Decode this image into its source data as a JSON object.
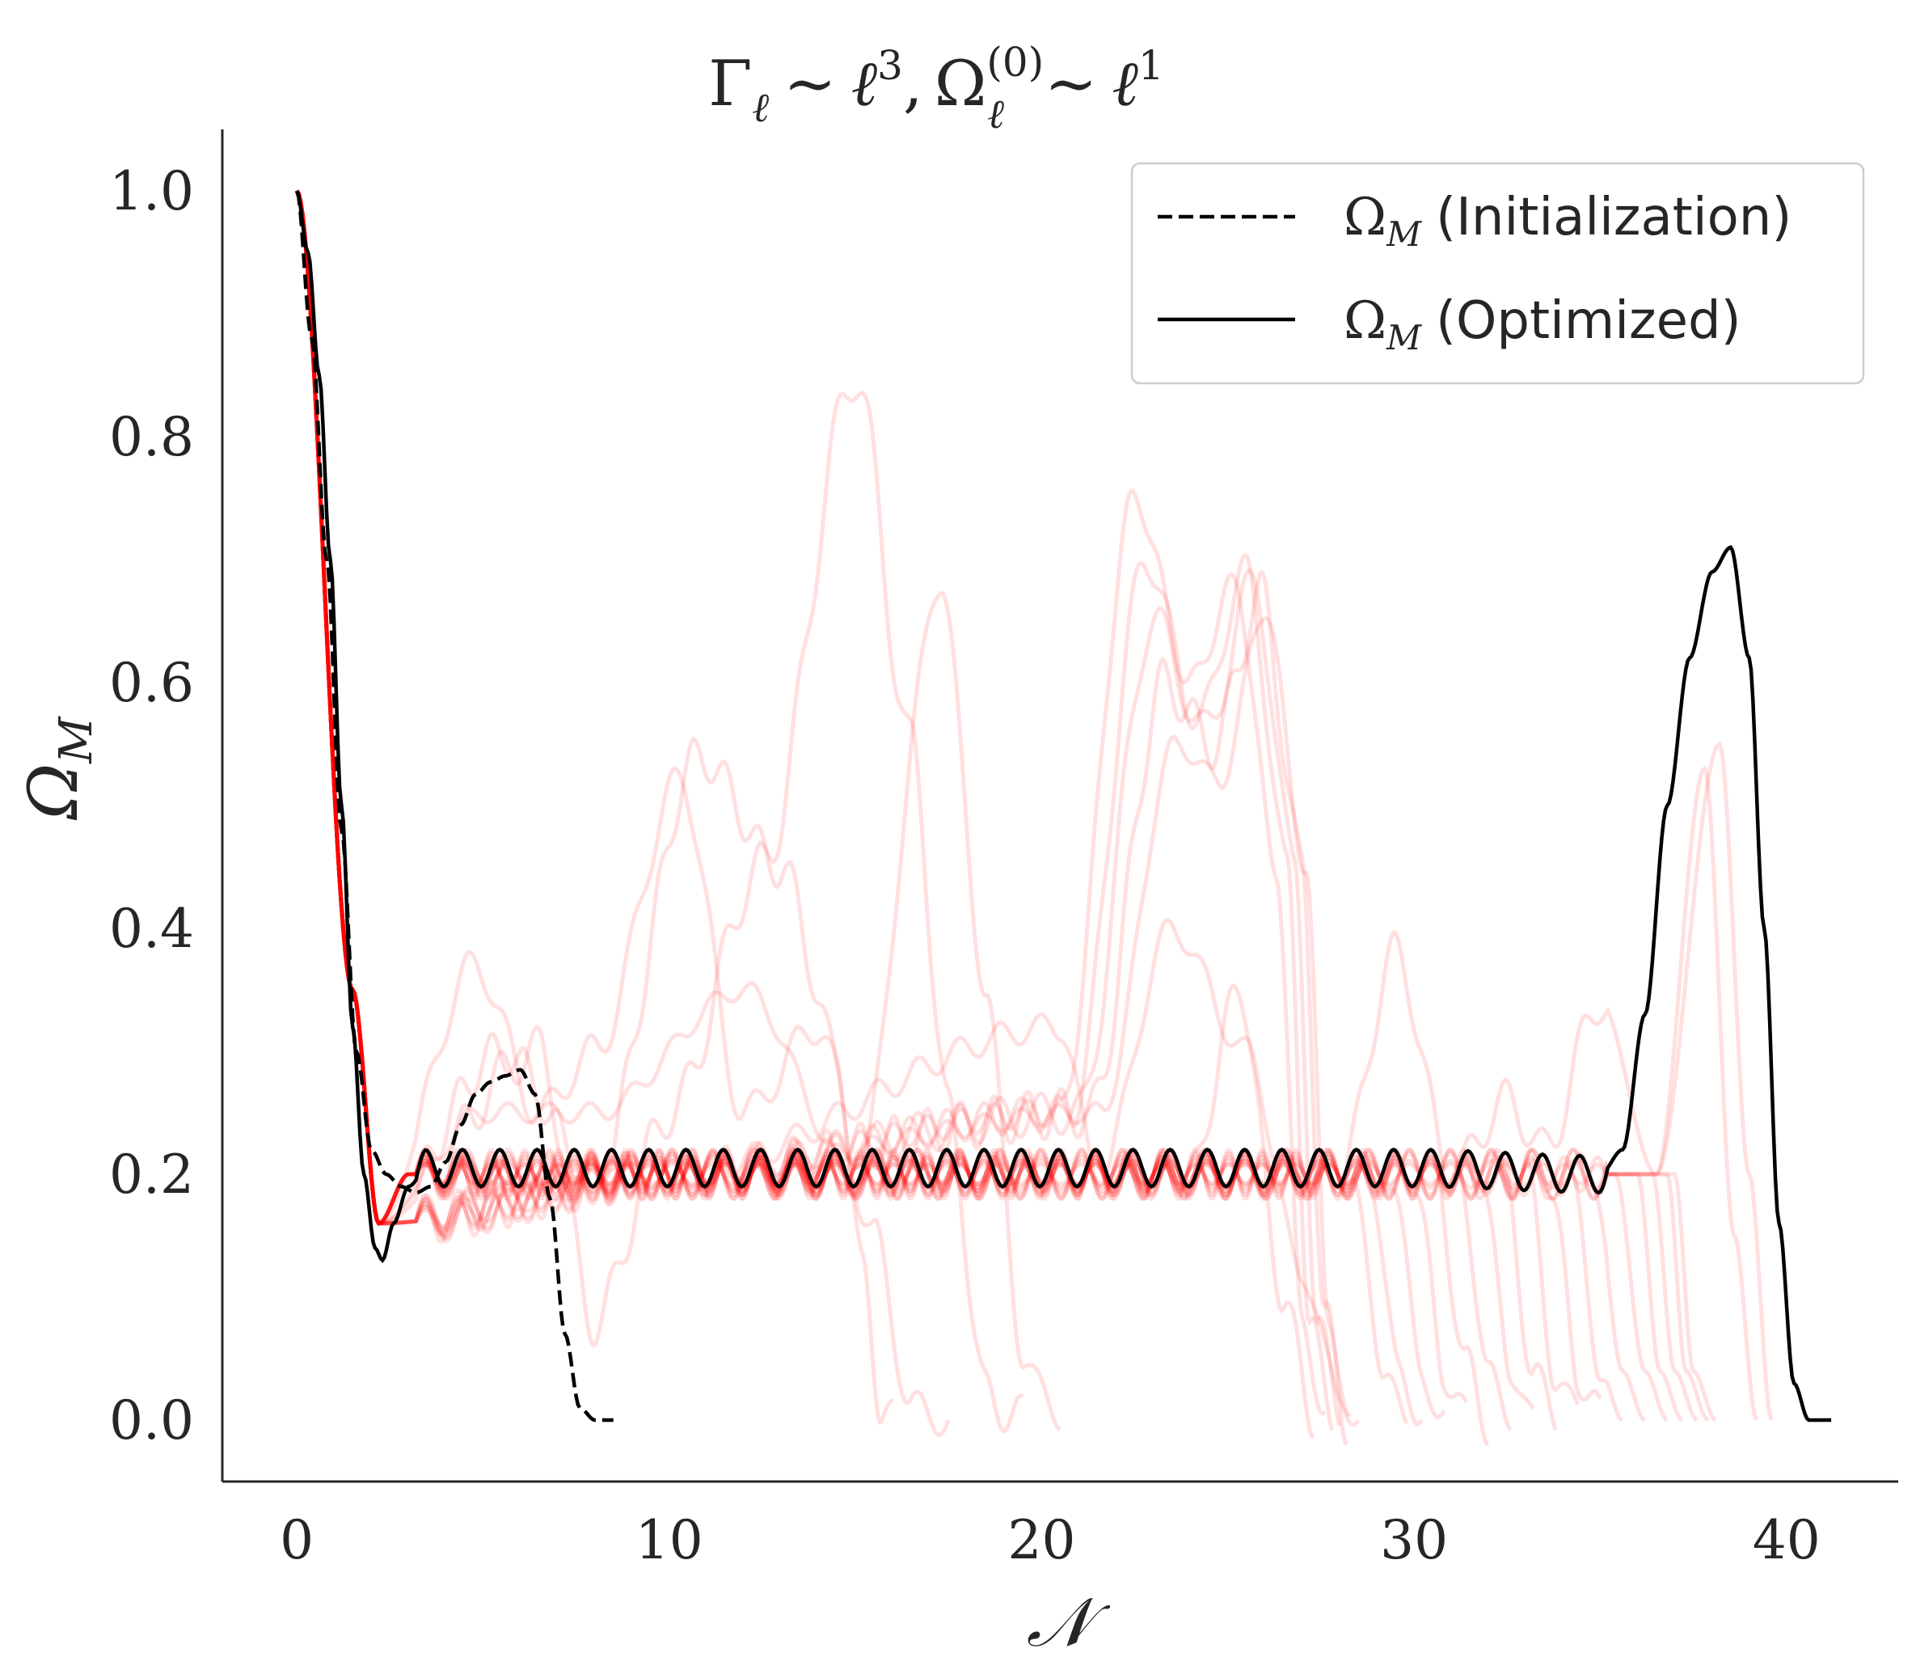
{
  "chart_data": {
    "type": "line",
    "title": "Γℓ ∼ ℓ³, Ωℓ⁽⁰⁾ ∼ ℓ¹",
    "title_parts": {
      "gamma": "Γ",
      "gamma_sub": "ℓ",
      "sim1": "∼",
      "ell1": "ℓ",
      "pow1": "3",
      "comma": ",",
      "omega": "Ω",
      "omega_sup": "(0)",
      "omega_sub": "ℓ",
      "sim2": "∼",
      "ell2": "ℓ",
      "pow2": "1"
    },
    "xlabel": "𝒩",
    "ylabel": "Ω",
    "ylabel_sub": "M",
    "xlim": [
      -2,
      43
    ],
    "ylim": [
      -0.05,
      1.05
    ],
    "xticks": [
      0,
      10,
      20,
      30,
      40
    ],
    "xtick_labels": [
      "0",
      "10",
      "20",
      "30",
      "40"
    ],
    "yticks": [
      0.0,
      0.2,
      0.4,
      0.6,
      0.8,
      1.0
    ],
    "ytick_labels": [
      "0.0",
      "0.2",
      "0.4",
      "0.6",
      "0.8",
      "1.0"
    ],
    "grid": false,
    "legend_position": "top-right",
    "legend": [
      {
        "symbol": "Ω",
        "sub": "M",
        "text": "(Initialization)",
        "style": "dashed"
      },
      {
        "symbol": "Ω",
        "sub": "M",
        "text": "(Optimized)",
        "style": "solid"
      }
    ],
    "colors": {
      "main": "#000000",
      "ensemble": "#ff0000",
      "axis": "#262626"
    },
    "series": [
      {
        "name": "Ω_M (Initialization)",
        "style": "dashed",
        "x": [
          0.0,
          0.4,
          0.8,
          1.2,
          1.6,
          2.0,
          2.4,
          2.8,
          3.2,
          3.6,
          4.0,
          4.4,
          4.8,
          5.2,
          5.6,
          6.0,
          6.4,
          6.8,
          7.2,
          7.6,
          8.0,
          8.5
        ],
        "y": [
          1.0,
          0.88,
          0.7,
          0.48,
          0.3,
          0.22,
          0.2,
          0.19,
          0.185,
          0.19,
          0.21,
          0.24,
          0.265,
          0.275,
          0.28,
          0.285,
          0.265,
          0.18,
          0.07,
          0.01,
          0.0,
          0.0
        ]
      },
      {
        "name": "Ω_M (Optimized)",
        "style": "solid",
        "osc_amplitude": 0.015,
        "osc_period": 1.0,
        "x": [
          0.0,
          0.3,
          0.6,
          0.9,
          1.2,
          1.5,
          1.8,
          2.1,
          2.3,
          2.6,
          3.0,
          3.5,
          4.5,
          10,
          20,
          30,
          35.0,
          35.6,
          36.2,
          36.8,
          37.4,
          38.0,
          38.5,
          39.0,
          39.4,
          39.8,
          40.2,
          40.6,
          41.2
        ],
        "y": [
          1.0,
          0.95,
          0.85,
          0.7,
          0.5,
          0.32,
          0.2,
          0.14,
          0.13,
          0.16,
          0.19,
          0.205,
          0.205,
          0.205,
          0.205,
          0.205,
          0.2,
          0.22,
          0.33,
          0.5,
          0.62,
          0.69,
          0.71,
          0.62,
          0.4,
          0.16,
          0.03,
          0.0,
          0.0
        ]
      }
    ],
    "ensemble": {
      "name": "Ω_M (ensemble runs)",
      "style": "solid",
      "opacity": 0.12,
      "runs": [
        {
          "x": [
            0,
            1.5,
            2.2,
            3,
            10,
            20,
            28.3,
            29.2,
            29.8
          ],
          "y": [
            1.0,
            0.35,
            0.16,
            0.2,
            0.2,
            0.2,
            0.2,
            0.04,
            0.0
          ]
        },
        {
          "x": [
            0,
            1.5,
            2.2,
            3,
            10,
            20,
            28.8,
            29.6,
            30.2
          ],
          "y": [
            1.0,
            0.35,
            0.16,
            0.2,
            0.2,
            0.2,
            0.2,
            0.04,
            0.0
          ]
        },
        {
          "x": [
            0,
            1.5,
            2.2,
            3,
            10,
            20,
            29.4,
            30.2,
            30.8
          ],
          "y": [
            1.0,
            0.35,
            0.16,
            0.2,
            0.2,
            0.2,
            0.2,
            0.04,
            0.0
          ]
        },
        {
          "x": [
            0,
            1.5,
            2.2,
            3,
            10,
            20,
            30.0,
            30.8,
            31.4
          ],
          "y": [
            1.0,
            0.35,
            0.16,
            0.2,
            0.2,
            0.2,
            0.2,
            0.04,
            0.0
          ]
        },
        {
          "x": [
            0,
            1.5,
            2.2,
            3,
            10,
            20,
            30.6,
            31.4,
            32.0
          ],
          "y": [
            1.0,
            0.35,
            0.16,
            0.2,
            0.2,
            0.2,
            0.2,
            0.04,
            0.0
          ]
        },
        {
          "x": [
            0,
            1.5,
            2.2,
            3,
            10,
            20,
            31.2,
            32.0,
            32.6
          ],
          "y": [
            1.0,
            0.35,
            0.16,
            0.2,
            0.2,
            0.2,
            0.2,
            0.04,
            0.0
          ]
        },
        {
          "x": [
            0,
            1.5,
            2.2,
            3,
            10,
            20,
            31.8,
            32.6,
            33.2
          ],
          "y": [
            1.0,
            0.35,
            0.16,
            0.2,
            0.2,
            0.2,
            0.2,
            0.04,
            0.0
          ]
        },
        {
          "x": [
            0,
            1.5,
            2.2,
            3,
            10,
            20,
            32.4,
            33.2,
            33.8
          ],
          "y": [
            1.0,
            0.35,
            0.16,
            0.2,
            0.2,
            0.2,
            0.2,
            0.04,
            0.0
          ]
        },
        {
          "x": [
            0,
            1.5,
            2.2,
            3,
            10,
            20,
            33.0,
            33.8,
            34.4
          ],
          "y": [
            1.0,
            0.35,
            0.16,
            0.2,
            0.2,
            0.2,
            0.2,
            0.04,
            0.0
          ]
        },
        {
          "x": [
            0,
            1.5,
            2.2,
            3,
            10,
            20,
            33.6,
            34.4,
            35.0
          ],
          "y": [
            1.0,
            0.35,
            0.16,
            0.2,
            0.2,
            0.2,
            0.2,
            0.04,
            0.0
          ]
        },
        {
          "x": [
            0,
            1.5,
            2.2,
            3,
            10,
            20,
            34.2,
            35.0,
            35.6
          ],
          "y": [
            1.0,
            0.35,
            0.16,
            0.2,
            0.2,
            0.2,
            0.2,
            0.04,
            0.0
          ]
        },
        {
          "x": [
            0,
            1.5,
            2.2,
            3,
            10,
            20,
            34.8,
            35.6,
            36.2
          ],
          "y": [
            1.0,
            0.35,
            0.16,
            0.2,
            0.2,
            0.2,
            0.2,
            0.04,
            0.0
          ]
        },
        {
          "x": [
            0,
            1.5,
            2.2,
            3,
            10,
            20,
            35.4,
            36.2,
            36.8
          ],
          "y": [
            1.0,
            0.35,
            0.16,
            0.2,
            0.2,
            0.2,
            0.2,
            0.04,
            0.0
          ]
        },
        {
          "x": [
            0,
            1.5,
            2.2,
            3,
            10,
            20,
            36.0,
            36.6,
            37.2
          ],
          "y": [
            1.0,
            0.35,
            0.16,
            0.2,
            0.2,
            0.2,
            0.2,
            0.04,
            0.0
          ]
        },
        {
          "x": [
            0,
            1.5,
            2.2,
            3,
            10,
            20,
            36.4,
            37.0,
            37.6
          ],
          "y": [
            1.0,
            0.35,
            0.16,
            0.2,
            0.2,
            0.2,
            0.2,
            0.04,
            0.0
          ]
        },
        {
          "x": [
            0,
            1.5,
            2.2,
            3,
            10,
            20,
            36.8,
            37.3,
            37.9
          ],
          "y": [
            1.0,
            0.35,
            0.16,
            0.2,
            0.2,
            0.2,
            0.2,
            0.04,
            0.0
          ]
        },
        {
          "x": [
            0,
            1.5,
            2.2,
            3,
            10,
            20,
            37.0,
            37.5,
            38.1
          ],
          "y": [
            1.0,
            0.35,
            0.16,
            0.2,
            0.2,
            0.2,
            0.2,
            0.04,
            0.0
          ]
        },
        {
          "x": [
            0,
            1.5,
            2.2,
            4.8,
            6.5,
            8.0,
            10.3,
            12.0,
            14.0,
            15.5,
            16.5,
            17.5
          ],
          "y": [
            1.0,
            0.35,
            0.16,
            0.37,
            0.25,
            0.3,
            0.52,
            0.25,
            0.32,
            0.15,
            0.01,
            0.0
          ]
        },
        {
          "x": [
            0,
            1.5,
            2.2,
            5.5,
            8.0,
            10.8,
            13.0,
            14.5,
            15.2,
            15.7,
            16.0
          ],
          "y": [
            1.0,
            0.35,
            0.16,
            0.3,
            0.2,
            0.54,
            0.45,
            0.3,
            0.12,
            0.01,
            0.0
          ]
        },
        {
          "x": [
            0,
            1.5,
            2.2,
            6.5,
            8.0,
            10.0,
            12.5,
            15.0,
            16.5,
            17.5,
            18.5,
            19.5
          ],
          "y": [
            1.0,
            0.35,
            0.16,
            0.3,
            0.08,
            0.25,
            0.45,
            0.85,
            0.55,
            0.25,
            0.02,
            0.0
          ]
        },
        {
          "x": [
            0,
            1.5,
            2.2,
            5.0,
            8.0,
            12.0,
            15.0,
            17.3,
            18.5,
            19.5,
            20.5
          ],
          "y": [
            1.0,
            0.35,
            0.16,
            0.25,
            0.25,
            0.35,
            0.2,
            0.68,
            0.35,
            0.05,
            0.0
          ]
        },
        {
          "x": [
            0,
            1.5,
            2.2,
            10,
            20.5,
            22.5,
            24.0,
            25.2,
            26.3,
            27.0,
            27.6
          ],
          "y": [
            1.0,
            0.35,
            0.16,
            0.2,
            0.25,
            0.75,
            0.6,
            0.68,
            0.45,
            0.08,
            0.0
          ]
        },
        {
          "x": [
            0,
            1.5,
            2.2,
            10,
            20.8,
            22.8,
            24.2,
            25.5,
            26.6,
            27.2,
            27.8
          ],
          "y": [
            1.0,
            0.35,
            0.16,
            0.2,
            0.25,
            0.7,
            0.57,
            0.69,
            0.45,
            0.08,
            0.0
          ]
        },
        {
          "x": [
            0,
            1.5,
            2.2,
            10,
            21.0,
            23.0,
            24.4,
            25.7,
            26.8,
            27.4,
            28.0
          ],
          "y": [
            1.0,
            0.35,
            0.16,
            0.2,
            0.25,
            0.65,
            0.56,
            0.68,
            0.45,
            0.08,
            0.0
          ]
        },
        {
          "x": [
            0,
            1.5,
            2.2,
            10,
            21.3,
            23.3,
            24.6,
            25.9,
            27.0,
            27.6,
            28.2
          ],
          "y": [
            1.0,
            0.35,
            0.16,
            0.2,
            0.25,
            0.6,
            0.55,
            0.67,
            0.45,
            0.08,
            0.0
          ]
        },
        {
          "x": [
            0,
            1.5,
            2.2,
            10,
            21.6,
            23.6,
            24.8,
            26.0,
            27.1,
            27.7,
            28.3
          ],
          "y": [
            1.0,
            0.35,
            0.16,
            0.2,
            0.25,
            0.55,
            0.52,
            0.66,
            0.45,
            0.08,
            0.0
          ]
        },
        {
          "x": [
            0,
            1.5,
            2.2,
            10,
            20.5,
            21.5,
            23.5,
            25.5,
            27.0,
            28.0,
            28.5
          ],
          "y": [
            1.0,
            0.35,
            0.16,
            0.2,
            0.32,
            0.2,
            0.4,
            0.3,
            0.12,
            0.02,
            0.0
          ]
        },
        {
          "x": [
            0,
            1.5,
            2.2,
            10,
            24.0,
            25.3,
            26.5,
            27.3
          ],
          "y": [
            1.0,
            0.35,
            0.16,
            0.2,
            0.2,
            0.35,
            0.1,
            0.0
          ]
        },
        {
          "x": [
            0,
            1.5,
            2.2,
            10,
            28.0,
            29.5,
            31.0,
            32.5,
            33.5,
            35.0,
            36.5,
            38.2,
            39.0,
            39.6
          ],
          "y": [
            1.0,
            0.35,
            0.16,
            0.2,
            0.2,
            0.38,
            0.2,
            0.26,
            0.22,
            0.34,
            0.2,
            0.55,
            0.2,
            0.0
          ]
        },
        {
          "x": [
            0,
            1.5,
            2.2,
            10,
            36.5,
            37.8,
            38.6,
            39.2
          ],
          "y": [
            1.0,
            0.35,
            0.16,
            0.2,
            0.2,
            0.53,
            0.15,
            0.0
          ]
        }
      ]
    }
  }
}
